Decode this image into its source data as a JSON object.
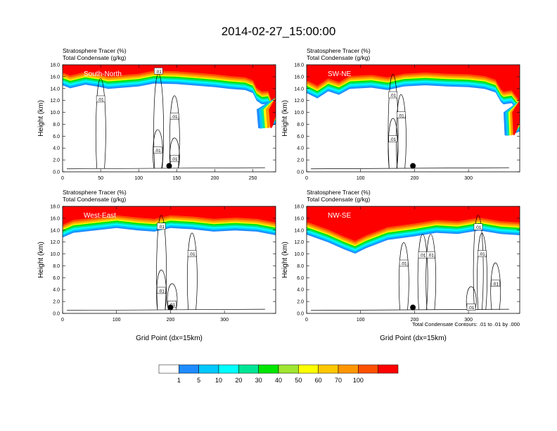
{
  "figure": {
    "title": "2014-02-27_15:00:00",
    "contour_note": "Total Condensate Contours: .01 to .01 by .000",
    "ylabel": "Height (km)",
    "xlabel": "Grid Point (dx=15km)"
  },
  "colorbar": {
    "colors": [
      "#ffffff",
      "#1e8cff",
      "#00c8ff",
      "#00ffff",
      "#00e696",
      "#00e600",
      "#a0e632",
      "#ffff00",
      "#ffc800",
      "#ff9600",
      "#ff5000",
      "#ff0000"
    ],
    "labels": [
      "1",
      "5",
      "10",
      "20",
      "30",
      "40",
      "50",
      "60",
      "70",
      "100"
    ]
  },
  "chart_data": [
    {
      "type": "heatmap",
      "label": "South-North",
      "subtitle1": "Stratosphere Tracer   (%)",
      "subtitle2": "Total Condensate   (g/kg)",
      "xlim": [
        0,
        280
      ],
      "xticks": [
        "0",
        "50",
        "100",
        "150",
        "200",
        "250"
      ],
      "xtick_values": [
        0,
        50,
        100,
        150,
        200,
        250
      ],
      "ylim": [
        0,
        18
      ],
      "yticks": [
        "0.0",
        "2.0",
        "4.0",
        "6.0",
        "8.0",
        "10.0",
        "12.0",
        "14.0",
        "16.0",
        "18.0"
      ],
      "marker": {
        "x": 140,
        "y": 1.0
      },
      "contour_labels": [
        {
          "text": ".01",
          "x": 50,
          "y": 12.2
        },
        {
          "text": ".01",
          "x": 125,
          "y": 3.6
        },
        {
          "text": ".01",
          "x": 147,
          "y": 2.2
        },
        {
          "text": ".01",
          "x": 147,
          "y": 9.3
        },
        {
          "text": ".01",
          "x": 126,
          "y": 16.9
        }
      ],
      "tracer_base": [
        [
          0,
          15.8
        ],
        [
          10,
          15.3
        ],
        [
          30,
          15.9
        ],
        [
          50,
          15.5
        ],
        [
          60,
          15.2
        ],
        [
          80,
          15.4
        ],
        [
          100,
          15.6
        ],
        [
          120,
          16.1
        ],
        [
          150,
          16.0
        ],
        [
          180,
          15.7
        ],
        [
          200,
          15.5
        ],
        [
          220,
          15.2
        ],
        [
          240,
          15.0
        ],
        [
          250,
          14.5
        ],
        [
          255,
          13.2
        ],
        [
          262,
          12.6
        ],
        [
          270,
          12.7
        ],
        [
          275,
          11.0
        ],
        [
          280,
          10.2
        ]
      ],
      "intrusion": {
        "x": 255,
        "ytop": 10.5,
        "ybot": 7.0
      }
    },
    {
      "type": "heatmap",
      "label": "SW-NE",
      "subtitle1": "Stratosphere Tracer   (%)",
      "subtitle2": "Total Condensate   (g/kg)",
      "xlim": [
        0,
        395
      ],
      "xticks": [
        "0",
        "100",
        "200",
        "300"
      ],
      "xtick_values": [
        0,
        100,
        200,
        300
      ],
      "ylim": [
        0,
        18
      ],
      "yticks": [
        "0.0",
        "2.0",
        "4.0",
        "6.0",
        "8.0",
        "10.0",
        "12.0",
        "14.0",
        "16.0",
        "18.0"
      ],
      "marker": {
        "x": 197,
        "y": 1.0
      },
      "contour_labels": [
        {
          "text": ".01",
          "x": 160,
          "y": 12.9
        },
        {
          "text": ".01",
          "x": 175,
          "y": 9.5
        },
        {
          "text": ".01",
          "x": 160,
          "y": 5.5
        }
      ],
      "tracer_base": [
        [
          0,
          14.5
        ],
        [
          20,
          13.6
        ],
        [
          40,
          14.8
        ],
        [
          60,
          14.2
        ],
        [
          80,
          15.2
        ],
        [
          120,
          15.4
        ],
        [
          150,
          15.0
        ],
        [
          180,
          15.6
        ],
        [
          220,
          15.8
        ],
        [
          260,
          15.6
        ],
        [
          300,
          15.5
        ],
        [
          330,
          15.2
        ],
        [
          350,
          14.6
        ],
        [
          360,
          13.0
        ],
        [
          365,
          12.6
        ],
        [
          380,
          12.8
        ],
        [
          395,
          11.0
        ]
      ],
      "intrusion": {
        "x": 365,
        "ytop": 10.0,
        "ybot": 5.8
      }
    },
    {
      "type": "heatmap",
      "label": "West-East",
      "subtitle1": "Stratosphere Tracer   (%)",
      "subtitle2": "Total Condensate   (g/kg)",
      "xlim": [
        0,
        395
      ],
      "xticks": [
        "0",
        "100",
        "200",
        "300"
      ],
      "xtick_values": [
        0,
        100,
        200,
        300
      ],
      "ylim": [
        0,
        18
      ],
      "yticks": [
        "0.0",
        "2.0",
        "4.0",
        "6.0",
        "8.0",
        "10.0",
        "12.0",
        "14.0",
        "16.0",
        "18.0"
      ],
      "marker": {
        "x": 200,
        "y": 1.0
      },
      "contour_labels": [
        {
          "text": ".01",
          "x": 183,
          "y": 14.6
        },
        {
          "text": ".01",
          "x": 240,
          "y": 10.0
        },
        {
          "text": ".01",
          "x": 183,
          "y": 3.8
        },
        {
          "text": ".01",
          "x": 203,
          "y": 1.5
        }
      ],
      "tracer_base": [
        [
          0,
          14.0
        ],
        [
          20,
          14.8
        ],
        [
          60,
          15.2
        ],
        [
          100,
          15.6
        ],
        [
          140,
          15.2
        ],
        [
          170,
          15.0
        ],
        [
          200,
          15.6
        ],
        [
          240,
          15.4
        ],
        [
          280,
          15.0
        ],
        [
          320,
          15.2
        ],
        [
          360,
          15.0
        ],
        [
          395,
          14.4
        ]
      ],
      "intrusion": null
    },
    {
      "type": "heatmap",
      "label": "NW-SE",
      "subtitle1": "Stratosphere Tracer   (%)",
      "subtitle2": "Total Condensate   (g/kg)",
      "xlim": [
        0,
        395
      ],
      "xticks": [
        "0",
        "100",
        "200",
        "300"
      ],
      "xtick_values": [
        0,
        100,
        200,
        300
      ],
      "ylim": [
        0,
        18
      ],
      "yticks": [
        "0.0",
        "2.0",
        "4.0",
        "6.0",
        "8.0",
        "10.0",
        "12.0",
        "14.0",
        "16.0",
        "18.0"
      ],
      "marker": {
        "x": 197,
        "y": 1.0
      },
      "contour_labels": [
        {
          "text": ".01",
          "x": 318,
          "y": 14.5
        },
        {
          "text": ".01",
          "x": 215,
          "y": 9.8
        },
        {
          "text": ".01",
          "x": 230,
          "y": 9.8
        },
        {
          "text": ".01",
          "x": 180,
          "y": 8.4
        },
        {
          "text": ".01",
          "x": 325,
          "y": 10.0
        },
        {
          "text": ".01",
          "x": 350,
          "y": 5.0
        },
        {
          "text": ".01",
          "x": 305,
          "y": 1.0
        }
      ],
      "tracer_base": [
        [
          0,
          14.5
        ],
        [
          40,
          13.2
        ],
        [
          70,
          12.0
        ],
        [
          90,
          11.3
        ],
        [
          110,
          12.2
        ],
        [
          150,
          13.6
        ],
        [
          200,
          14.2
        ],
        [
          240,
          14.8
        ],
        [
          280,
          14.6
        ],
        [
          320,
          15.2
        ],
        [
          360,
          14.6
        ],
        [
          395,
          14.4
        ]
      ],
      "intrusion": null
    }
  ]
}
